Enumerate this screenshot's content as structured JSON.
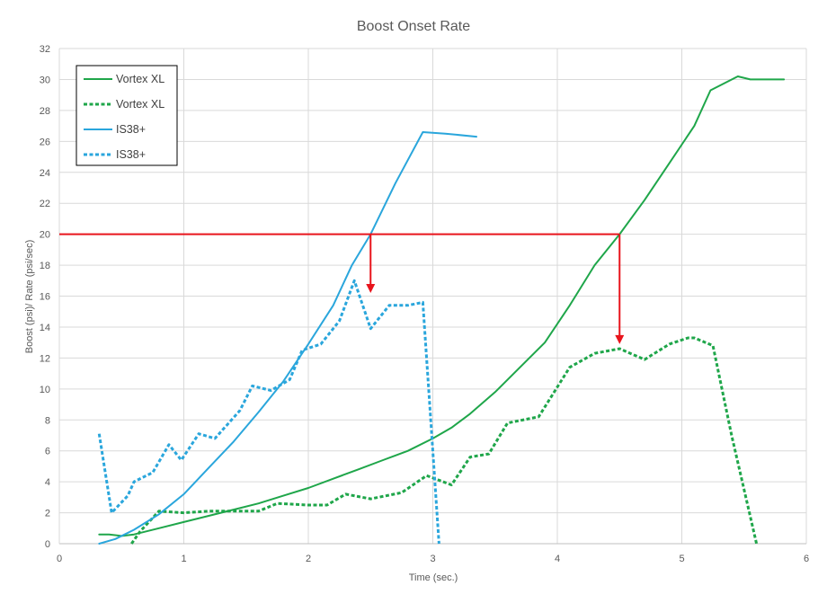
{
  "chart_data": {
    "type": "line",
    "title": "Boost Onset Rate",
    "xlabel": "Time (sec.)",
    "ylabel": "Boost (psi)/ Rate (psi/sec)",
    "xlim": [
      0,
      6
    ],
    "ylim": [
      0,
      32
    ],
    "xticks": [
      0,
      1,
      2,
      3,
      4,
      5,
      6
    ],
    "yticks": [
      0,
      2,
      4,
      6,
      8,
      10,
      12,
      14,
      16,
      18,
      20,
      22,
      24,
      26,
      28,
      30,
      32
    ],
    "grid": true,
    "legend_position": "top-left",
    "series": [
      {
        "name": "Vortex XL",
        "color": "#1fa64a",
        "dash": "solid",
        "points": [
          [
            0.32,
            0.6
          ],
          [
            0.4,
            0.6
          ],
          [
            0.5,
            0.5
          ],
          [
            0.6,
            0.6
          ],
          [
            0.8,
            1.0
          ],
          [
            1.0,
            1.4
          ],
          [
            1.2,
            1.8
          ],
          [
            1.4,
            2.2
          ],
          [
            1.6,
            2.6
          ],
          [
            1.8,
            3.1
          ],
          [
            2.0,
            3.6
          ],
          [
            2.2,
            4.2
          ],
          [
            2.4,
            4.8
          ],
          [
            2.6,
            5.4
          ],
          [
            2.8,
            6.0
          ],
          [
            3.0,
            6.8
          ],
          [
            3.15,
            7.5
          ],
          [
            3.3,
            8.4
          ],
          [
            3.5,
            9.8
          ],
          [
            3.7,
            11.4
          ],
          [
            3.9,
            13.0
          ],
          [
            4.1,
            15.4
          ],
          [
            4.3,
            18.0
          ],
          [
            4.5,
            20.0
          ],
          [
            4.7,
            22.2
          ],
          [
            4.9,
            24.6
          ],
          [
            5.1,
            27.0
          ],
          [
            5.23,
            29.3
          ],
          [
            5.45,
            30.2
          ],
          [
            5.55,
            30.0
          ],
          [
            5.82,
            30.0
          ]
        ]
      },
      {
        "name": "Vortex XL",
        "color": "#1fa64a",
        "dash": "dashed",
        "points": [
          [
            0.58,
            0.0
          ],
          [
            0.65,
            0.8
          ],
          [
            0.8,
            2.1
          ],
          [
            1.0,
            2.0
          ],
          [
            1.2,
            2.1
          ],
          [
            1.4,
            2.1
          ],
          [
            1.6,
            2.1
          ],
          [
            1.75,
            2.6
          ],
          [
            2.0,
            2.5
          ],
          [
            2.15,
            2.5
          ],
          [
            2.3,
            3.2
          ],
          [
            2.5,
            2.9
          ],
          [
            2.75,
            3.3
          ],
          [
            2.95,
            4.4
          ],
          [
            3.15,
            3.8
          ],
          [
            3.3,
            5.6
          ],
          [
            3.45,
            5.8
          ],
          [
            3.6,
            7.8
          ],
          [
            3.85,
            8.2
          ],
          [
            4.1,
            11.4
          ],
          [
            4.3,
            12.3
          ],
          [
            4.5,
            12.6
          ],
          [
            4.7,
            11.9
          ],
          [
            4.9,
            12.9
          ],
          [
            5.05,
            13.3
          ],
          [
            5.1,
            13.3
          ],
          [
            5.25,
            12.8
          ],
          [
            5.4,
            7.0
          ],
          [
            5.6,
            0.0
          ]
        ]
      },
      {
        "name": "IS38+",
        "color": "#2aa6dc",
        "dash": "solid",
        "points": [
          [
            0.32,
            0.0
          ],
          [
            0.45,
            0.3
          ],
          [
            0.6,
            0.9
          ],
          [
            0.8,
            1.9
          ],
          [
            1.0,
            3.2
          ],
          [
            1.2,
            4.9
          ],
          [
            1.4,
            6.6
          ],
          [
            1.6,
            8.5
          ],
          [
            1.8,
            10.5
          ],
          [
            2.0,
            12.9
          ],
          [
            2.2,
            15.4
          ],
          [
            2.35,
            18.0
          ],
          [
            2.5,
            20.0
          ],
          [
            2.7,
            23.3
          ],
          [
            2.92,
            26.6
          ],
          [
            3.1,
            26.5
          ],
          [
            3.35,
            26.3
          ]
        ]
      },
      {
        "name": "IS38+",
        "color": "#2aa6dc",
        "dash": "dashed",
        "points": [
          [
            0.32,
            7.1
          ],
          [
            0.42,
            2.0
          ],
          [
            0.55,
            3.1
          ],
          [
            0.6,
            4.0
          ],
          [
            0.7,
            4.4
          ],
          [
            0.75,
            4.6
          ],
          [
            0.88,
            6.4
          ],
          [
            0.98,
            5.4
          ],
          [
            1.12,
            7.1
          ],
          [
            1.25,
            6.8
          ],
          [
            1.45,
            8.6
          ],
          [
            1.55,
            10.2
          ],
          [
            1.7,
            9.9
          ],
          [
            1.85,
            10.6
          ],
          [
            1.95,
            12.5
          ],
          [
            2.1,
            12.9
          ],
          [
            2.25,
            14.4
          ],
          [
            2.37,
            17.0
          ],
          [
            2.5,
            13.9
          ],
          [
            2.65,
            15.4
          ],
          [
            2.8,
            15.4
          ],
          [
            2.92,
            15.6
          ],
          [
            3.05,
            0.0
          ]
        ]
      }
    ],
    "annotations": [
      {
        "type": "hline",
        "y": 20,
        "x_from": 0,
        "x_to": 4.5,
        "color": "#e8141c"
      },
      {
        "type": "arrow",
        "x": 2.5,
        "y_from": 20,
        "y_to": 16.2,
        "color": "#e8141c"
      },
      {
        "type": "arrow",
        "x": 4.5,
        "y_from": 20,
        "y_to": 12.9,
        "color": "#e8141c"
      }
    ]
  }
}
